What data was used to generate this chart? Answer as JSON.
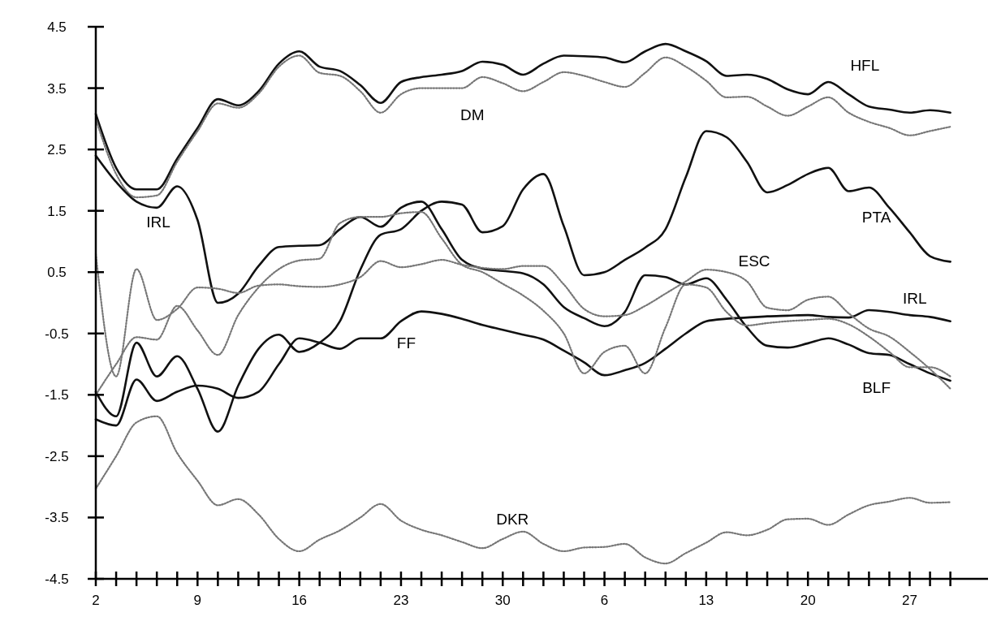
{
  "chart_data": {
    "type": "line",
    "categories": [
      "2",
      null,
      null,
      null,
      null,
      "9",
      null,
      null,
      null,
      null,
      "16",
      null,
      null,
      null,
      null,
      "23",
      null,
      null,
      null,
      null,
      "30",
      null,
      null,
      null,
      null,
      "6",
      null,
      null,
      null,
      null,
      "13",
      null,
      null,
      null,
      null,
      "20",
      null,
      null,
      null,
      null,
      "27",
      null,
      null
    ],
    "ylim": [
      -4.5,
      4.5
    ],
    "yticks": [
      -4.5,
      -3.5,
      -2.5,
      -1.5,
      -0.5,
      0.5,
      1.5,
      2.5,
      3.5,
      4.5
    ],
    "series": [
      {
        "color": "#111111",
        "line_style": "solid",
        "values": [
          3.08,
          2.2,
          1.85,
          1.85,
          2.35,
          2.85,
          3.32,
          3.22,
          3.45,
          3.9,
          4.1,
          3.85,
          3.78,
          3.55,
          3.26,
          3.6,
          3.68,
          3.72,
          3.78,
          3.93,
          3.88,
          3.72,
          3.9,
          4.03,
          4.02,
          4.0,
          3.92,
          4.1,
          4.22,
          4.1,
          3.94,
          3.7,
          3.72,
          3.65,
          3.48,
          3.4,
          3.6,
          3.4,
          3.2,
          3.15,
          3.1,
          3.14,
          3.1
        ]
      },
      {
        "color": "#777777",
        "line_style": "dotted",
        "values": [
          3.0,
          2.1,
          1.72,
          1.75,
          2.3,
          2.8,
          3.25,
          3.18,
          3.41,
          3.85,
          4.03,
          3.75,
          3.7,
          3.45,
          3.1,
          3.4,
          3.5,
          3.5,
          3.5,
          3.68,
          3.58,
          3.45,
          3.6,
          3.76,
          3.7,
          3.6,
          3.52,
          3.75,
          4.0,
          3.85,
          3.62,
          3.35,
          3.36,
          3.2,
          3.05,
          3.2,
          3.35,
          3.1,
          2.95,
          2.85,
          2.73,
          2.8,
          2.87
        ]
      },
      {
        "color": "#111111",
        "line_style": "solid",
        "values": [
          2.4,
          1.97,
          1.65,
          1.55,
          1.9,
          1.35,
          0.0,
          0.15,
          0.6,
          0.91,
          0.93,
          0.94,
          1.2,
          1.4,
          1.24,
          1.55,
          1.65,
          1.2,
          0.7,
          0.56,
          0.52,
          0.48,
          0.3,
          -0.07,
          -0.25,
          -0.38,
          -0.15,
          0.45,
          0.42,
          0.3,
          0.4,
          0.05,
          -0.4,
          -0.7,
          -0.73,
          -0.66,
          -0.58,
          -0.68,
          -0.82,
          -0.85,
          -1.0,
          -1.15,
          -1.27
        ]
      },
      {
        "color": "#111111",
        "line_style": "solid",
        "values": [
          -1.45,
          -1.85,
          -0.65,
          -1.2,
          -0.87,
          -1.4,
          -2.1,
          -1.35,
          -0.75,
          -0.52,
          -0.8,
          -0.65,
          -0.3,
          0.54,
          1.11,
          1.2,
          1.5,
          1.65,
          1.6,
          1.15,
          1.25,
          1.85,
          2.1,
          1.25,
          0.45,
          0.5,
          0.7,
          0.9,
          1.2,
          2.05,
          2.8,
          2.7,
          2.3,
          1.8,
          1.92,
          2.1,
          2.2,
          1.82,
          1.88,
          1.55,
          1.15,
          0.76,
          0.67
        ]
      },
      {
        "color": "#111111",
        "line_style": "solid",
        "values": [
          -1.9,
          -2.0,
          -1.25,
          -1.6,
          -1.45,
          -1.35,
          -1.4,
          -1.55,
          -1.45,
          -1.0,
          -0.58,
          -0.65,
          -0.75,
          -0.58,
          -0.58,
          -0.3,
          -0.14,
          -0.18,
          -0.26,
          -0.36,
          -0.44,
          -0.52,
          -0.6,
          -0.78,
          -0.97,
          -1.18,
          -1.1,
          -0.98,
          -0.75,
          -0.5,
          -0.3,
          -0.26,
          -0.24,
          -0.22,
          -0.21,
          -0.2,
          -0.23,
          -0.24,
          -0.12,
          -0.15,
          -0.2,
          -0.23,
          -0.3
        ]
      },
      {
        "color": "#777777",
        "line_style": "dotted",
        "values": [
          0.8,
          -1.2,
          0.55,
          -0.28,
          -0.1,
          0.25,
          0.23,
          0.16,
          0.28,
          0.3,
          0.27,
          0.26,
          0.3,
          0.42,
          0.68,
          0.58,
          0.63,
          0.7,
          0.62,
          0.57,
          0.55,
          0.6,
          0.6,
          0.3,
          -0.1,
          -0.22,
          -0.2,
          -0.05,
          0.15,
          0.35,
          0.54,
          0.5,
          0.35,
          -0.08,
          -0.12,
          0.05,
          0.1,
          -0.17,
          -0.42,
          -0.55,
          -0.8,
          -1.08,
          -1.4
        ]
      },
      {
        "color": "#777777",
        "line_style": "dotted",
        "values": [
          -1.5,
          -1.0,
          -0.56,
          -0.6,
          -0.05,
          -0.45,
          -0.85,
          -0.2,
          0.25,
          0.55,
          0.69,
          0.72,
          1.3,
          1.4,
          1.4,
          1.46,
          1.48,
          1.05,
          0.62,
          0.5,
          0.31,
          0.12,
          -0.13,
          -0.5,
          -1.15,
          -0.8,
          -0.7,
          -1.15,
          -0.4,
          0.3,
          0.25,
          -0.15,
          -0.37,
          -0.33,
          -0.3,
          -0.28,
          -0.26,
          -0.35,
          -0.55,
          -0.8,
          -1.05,
          -1.05,
          -1.2
        ]
      },
      {
        "color": "#777777",
        "line_style": "dotted",
        "values": [
          -3.03,
          -2.5,
          -1.95,
          -1.85,
          -2.45,
          -2.9,
          -3.3,
          -3.2,
          -3.45,
          -3.85,
          -4.05,
          -3.86,
          -3.71,
          -3.5,
          -3.28,
          -3.55,
          -3.7,
          -3.79,
          -3.9,
          -4.0,
          -3.85,
          -3.73,
          -3.93,
          -4.05,
          -3.99,
          -3.98,
          -3.93,
          -4.15,
          -4.25,
          -4.08,
          -3.91,
          -3.74,
          -3.79,
          -3.7,
          -3.53,
          -3.52,
          -3.62,
          -3.45,
          -3.3,
          -3.24,
          -3.18,
          -3.26,
          -3.25
        ]
      }
    ],
    "annotations": [
      "HFL",
      "DM",
      "IRL",
      "PTA",
      "ESC",
      "IRL",
      "FF",
      "BLF",
      "DKR"
    ]
  }
}
